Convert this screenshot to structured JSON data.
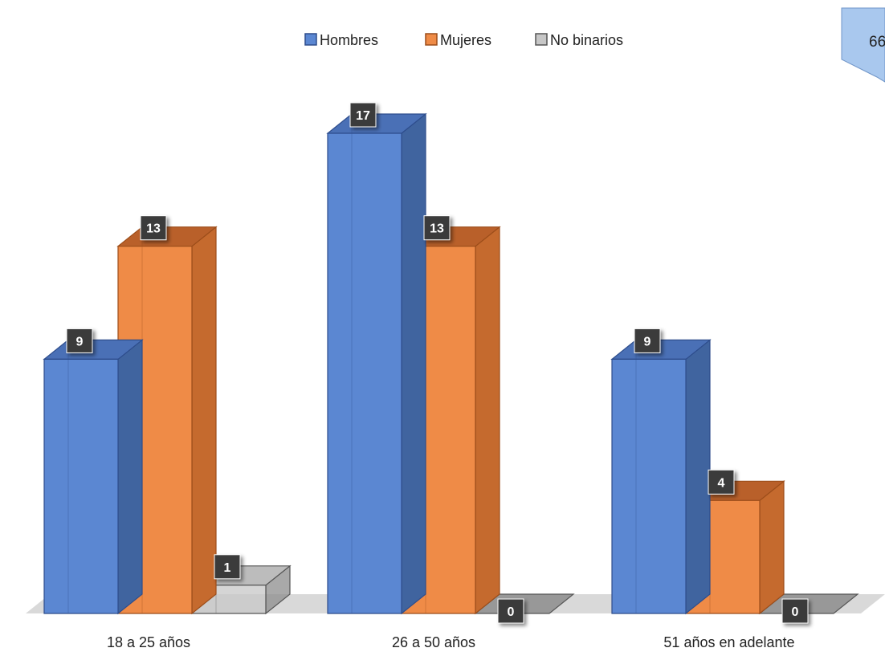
{
  "chart_data": {
    "type": "bar",
    "categories": [
      "18 a 25 años",
      "26 a 50 años",
      "51 años en adelante"
    ],
    "series": [
      {
        "name": "Hombres",
        "values": [
          9,
          17,
          9
        ]
      },
      {
        "name": "Mujeres",
        "values": [
          13,
          13,
          4
        ]
      },
      {
        "name": "No binarios",
        "values": [
          1,
          0,
          0
        ]
      }
    ],
    "ylim": [
      0,
      17
    ],
    "grid": false,
    "legend": "top-center",
    "style": "3d-clustered-column",
    "data_labels": true
  },
  "colors": {
    "Hombres": {
      "front": "#5b87d2",
      "side": "#40649f",
      "top": "#4a70b6",
      "edge": "#2e4d8c"
    },
    "Mujeres": {
      "front": "#ef8b47",
      "side": "#c56a2e",
      "top": "#b9602a",
      "edge": "#9c4d1a"
    },
    "No binarios": {
      "front": "#c7c7c7",
      "side": "#8c8c8c",
      "top": "#a6a6a6",
      "edge": "#555555"
    },
    "floor": "#d9d9d9",
    "label_bg": "#3a3a3a"
  },
  "badge": {
    "text": "66",
    "color": "#a9c8ee"
  }
}
